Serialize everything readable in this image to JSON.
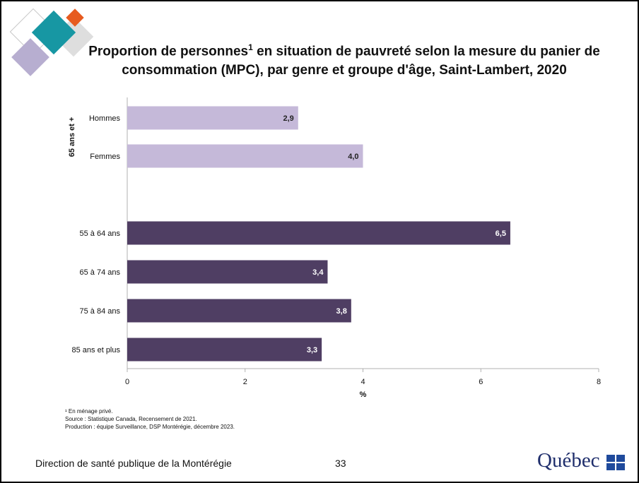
{
  "title": {
    "part1": "Proportion de personnes",
    "sup": "1",
    "part2": " en situation de pauvreté selon la mesure du panier de consommation (MPC), par genre et groupe d'âge, Saint-Lambert, 2020"
  },
  "colors": {
    "light_bar": "#c5b9d9",
    "dark_bar": "#4f3e63",
    "deco_teal": "#1797a3",
    "deco_orange": "#e75b1f",
    "deco_purple": "#b7aed0",
    "deco_grey": "#dcdcdc"
  },
  "chart_data": {
    "type": "bar",
    "orientation": "horizontal",
    "group_label": "65 ans et +",
    "categories": [
      "Hommes",
      "Femmes",
      "55 à 64 ans",
      "65 à 74 ans",
      "75 à 84 ans",
      "85 ans et plus"
    ],
    "values": [
      2.9,
      4.0,
      6.5,
      3.4,
      3.8,
      3.3
    ],
    "value_labels": [
      "2,9",
      "4,0",
      "6,5",
      "3,4",
      "3,8",
      "3,3"
    ],
    "xlabel": "%",
    "xlim": [
      0,
      8
    ],
    "xticks": [
      0,
      2,
      4,
      6,
      8
    ],
    "grid": false
  },
  "notes": [
    "¹ En ménage privé.",
    "Source : Statistique Canada, Recensement de 2021.",
    "Production : équipe Surveillance, DSP Montérégie, décembre 2023."
  ],
  "footer": {
    "org": "Direction de santé publique de la Montérégie",
    "page": "33",
    "logo": "Québec"
  }
}
